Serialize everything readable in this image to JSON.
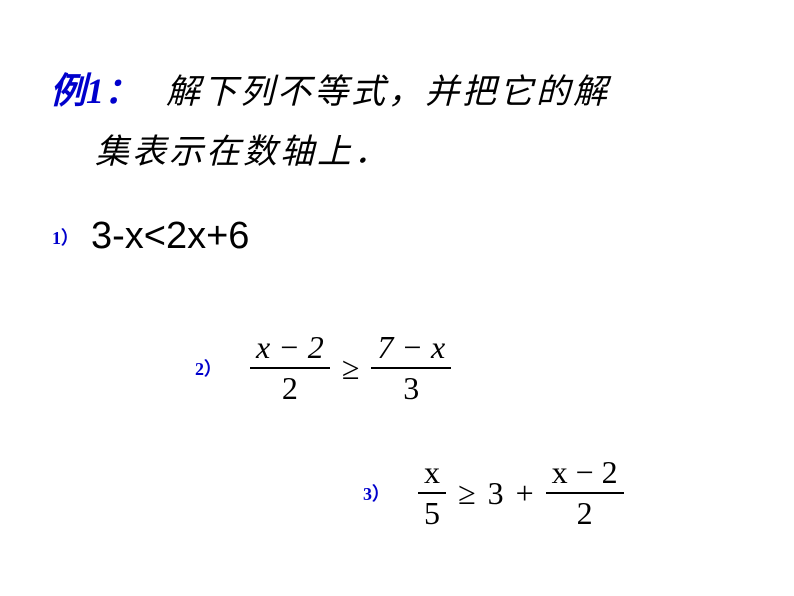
{
  "example": {
    "label": "例1：",
    "title_line1": "解下列不等式，并把它的解",
    "title_line2": "集表示在数轴上．"
  },
  "problems": {
    "p1": {
      "label": "1）",
      "expression": "3-x<2x+6",
      "fontsize": 38,
      "font": "Arial"
    },
    "p2": {
      "label": "2）",
      "frac1_num": "x − 2",
      "frac1_den": "2",
      "operator": "≥",
      "frac2_num": "7 − x",
      "frac2_den": "3",
      "fontsize": 32,
      "font": "Times New Roman italic"
    },
    "p3": {
      "label": "3）",
      "frac1_num": "x",
      "frac1_den": "5",
      "op1": "≥",
      "middle": "3",
      "op2": "+",
      "frac2_num": "x − 2",
      "frac2_den": "2",
      "fontsize": 32,
      "font": "Times New Roman italic"
    }
  },
  "colors": {
    "label_color": "#0000cc",
    "text_color": "#000000",
    "background": "#ffffff"
  }
}
